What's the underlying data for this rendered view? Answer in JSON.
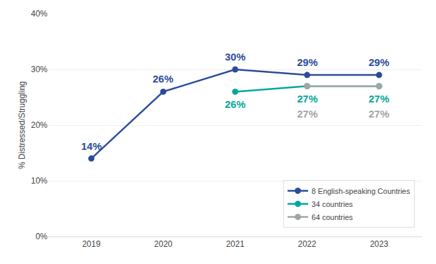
{
  "chart_data": {
    "type": "line",
    "x": [
      2019,
      2020,
      2021,
      2022,
      2023
    ],
    "series": [
      {
        "name": "8 English-speaking Countries",
        "color": "#2B4B9B",
        "marker": "o",
        "values": [
          14,
          26,
          30,
          29,
          29
        ],
        "value_labels": [
          "14%",
          "26%",
          "30%",
          "29%",
          "29%"
        ]
      },
      {
        "name": "34 countries",
        "color": "#00A89D",
        "marker": "o",
        "values": [
          null,
          null,
          26,
          27,
          27
        ],
        "value_labels": [
          null,
          null,
          "26%",
          "27%",
          "27%"
        ]
      },
      {
        "name": "64 countries",
        "color": "#A0A5A8",
        "marker": "o",
        "values": [
          null,
          null,
          null,
          27,
          27
        ],
        "value_labels": [
          null,
          null,
          null,
          "27%",
          "27%"
        ]
      }
    ],
    "ylabel": "% Distressed/Struggling",
    "xlim": [
      2018.4,
      2023.6
    ],
    "xticks": [
      2019,
      2020,
      2021,
      2022,
      2023
    ],
    "ylim": [
      0,
      40
    ],
    "yticks": [
      {
        "value": 0,
        "label": "0%"
      },
      {
        "value": 10,
        "label": "10%"
      },
      {
        "value": 20,
        "label": "20%"
      },
      {
        "value": 30,
        "label": "30%"
      },
      {
        "value": 40,
        "label": "40%"
      }
    ],
    "grid": true,
    "legend": "lower right",
    "data_labels": true
  }
}
